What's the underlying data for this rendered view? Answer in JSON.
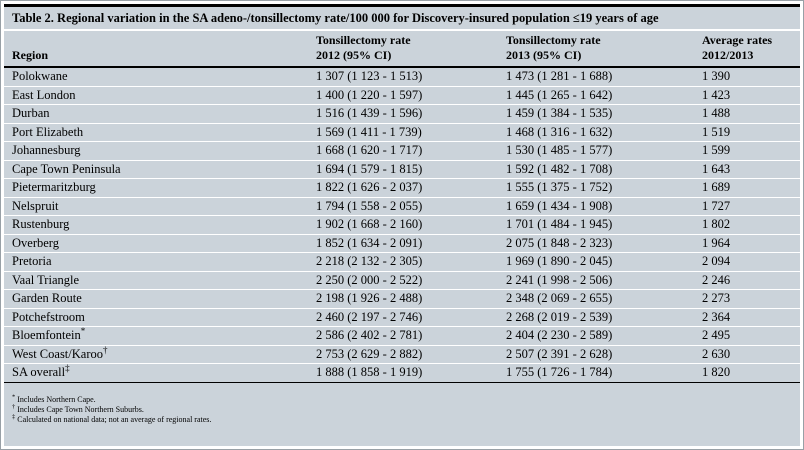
{
  "table": {
    "title": "Table 2. Regional variation in the SA adeno-/tonsillectomy rate/100 000 for Discovery-insured population ≤19 years of age",
    "headers": {
      "region": "Region",
      "rate2012_line1": "Tonsillectomy rate",
      "rate2012_line2": "2012 (95% CI)",
      "rate2013_line1": "Tonsillectomy rate",
      "rate2013_line2": "2013 (95% CI)",
      "average_line1": "Average rates",
      "average_line2": "2012/2013"
    },
    "rows": [
      {
        "region": "Polokwane",
        "marker": "",
        "rate_2012": "1 307 (1 123 - 1 513)",
        "rate_2013": "1 473 (1 281 - 1 688)",
        "average": "1 390"
      },
      {
        "region": "East London",
        "marker": "",
        "rate_2012": "1 400 (1 220 - 1 597)",
        "rate_2013": "1 445 (1 265 - 1 642)",
        "average": "1 423"
      },
      {
        "region": "Durban",
        "marker": "",
        "rate_2012": "1 516 (1 439 - 1 596)",
        "rate_2013": "1 459 (1 384 - 1 535)",
        "average": "1 488"
      },
      {
        "region": "Port Elizabeth",
        "marker": "",
        "rate_2012": "1 569 (1 411 - 1 739)",
        "rate_2013": "1 468 (1 316 - 1 632)",
        "average": "1 519"
      },
      {
        "region": "Johannesburg",
        "marker": "",
        "rate_2012": "1 668 (1 620 - 1 717)",
        "rate_2013": "1 530 (1 485 - 1 577)",
        "average": "1 599"
      },
      {
        "region": "Cape Town Peninsula",
        "marker": "",
        "rate_2012": "1 694 (1 579 - 1 815)",
        "rate_2013": "1 592 (1 482 - 1 708)",
        "average": "1 643"
      },
      {
        "region": "Pietermaritzburg",
        "marker": "",
        "rate_2012": "1 822 (1 626 - 2 037)",
        "rate_2013": "1 555 (1 375 - 1 752)",
        "average": "1 689"
      },
      {
        "region": "Nelspruit",
        "marker": "",
        "rate_2012": "1 794 (1 558 - 2 055)",
        "rate_2013": "1 659 (1 434 - 1 908)",
        "average": "1 727"
      },
      {
        "region": "Rustenburg",
        "marker": "",
        "rate_2012": "1 902 (1 668 - 2 160)",
        "rate_2013": "1 701 (1 484 - 1 945)",
        "average": "1 802"
      },
      {
        "region": "Overberg",
        "marker": "",
        "rate_2012": "1 852 (1 634 - 2 091)",
        "rate_2013": "2 075 (1 848 - 2 323)",
        "average": "1 964"
      },
      {
        "region": "Pretoria",
        "marker": "",
        "rate_2012": "2 218 (2 132 - 2 305)",
        "rate_2013": "1 969 (1 890 - 2 045)",
        "average": "2 094"
      },
      {
        "region": "Vaal Triangle",
        "marker": "",
        "rate_2012": "2 250 (2 000 - 2 522)",
        "rate_2013": "2 241 (1 998 - 2 506)",
        "average": "2 246"
      },
      {
        "region": "Garden Route",
        "marker": "",
        "rate_2012": "2 198 (1 926 - 2 488)",
        "rate_2013": "2 348 (2 069 - 2 655)",
        "average": "2 273"
      },
      {
        "region": "Potchefstroom",
        "marker": "",
        "rate_2012": "2 460 (2 197 - 2 746)",
        "rate_2013": "2 268 (2 019 - 2 539)",
        "average": "2 364"
      },
      {
        "region": "Bloemfontein",
        "marker": "*",
        "rate_2012": "2 586 (2 402 - 2 781)",
        "rate_2013": "2 404 (2 230 - 2 589)",
        "average": "2 495"
      },
      {
        "region": "West Coast/Karoo",
        "marker": "†",
        "rate_2012": "2 753 (2 629 - 2 882)",
        "rate_2013": "2 507 (2 391 - 2 628)",
        "average": "2 630"
      },
      {
        "region": "SA overall",
        "marker": "‡",
        "rate_2012": "1 888 (1 858 - 1 919)",
        "rate_2013": "1 755 (1 726 - 1 784)",
        "average": "1 820"
      }
    ],
    "footnotes": [
      {
        "marker": "*",
        "text": "Includes Northern Cape."
      },
      {
        "marker": "†",
        "text": "Includes Cape Town Northern Suburbs."
      },
      {
        "marker": "‡",
        "text": "Calculated on national data; not an average of regional rates."
      }
    ],
    "colors": {
      "background": "#cbd3da",
      "separator": "#ffffff",
      "rule": "#000000",
      "text": "#000000"
    }
  }
}
